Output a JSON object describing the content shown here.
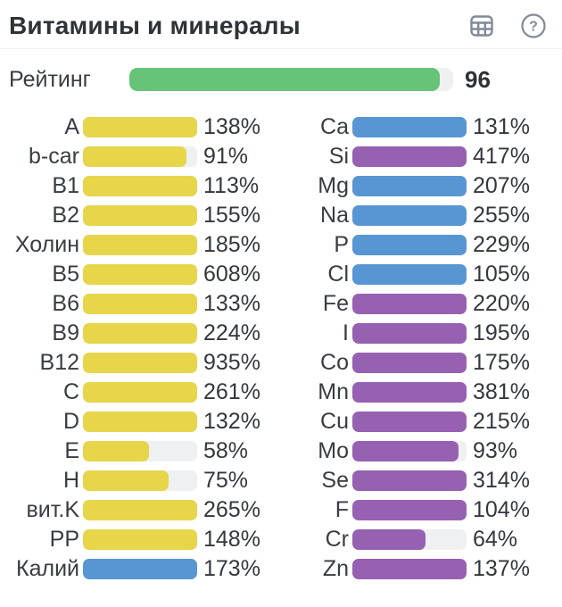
{
  "header": {
    "title": "Витамины и минералы"
  },
  "rating": {
    "label": "Рейтинг",
    "value": "96",
    "percent": 96
  },
  "colors": {
    "yellow": "#e7d54a",
    "blue": "#5796d3",
    "purple": "#9761b2",
    "green": "#66c377",
    "track": "#eef0f2",
    "icon_gray": "#828a95"
  },
  "chart_data": {
    "type": "bar",
    "title": "Витамины и минералы",
    "note_layout": "two columns of horizontal bars, fill capped at 100%",
    "bar_cap_percent": 100,
    "rating": {
      "label": "Рейтинг",
      "value": 96,
      "max": 100,
      "color": "green"
    },
    "columns": [
      {
        "name": "vitamins",
        "rows": [
          {
            "label": "A",
            "percent": 138,
            "display": "138%",
            "color": "yellow"
          },
          {
            "label": "b-car",
            "percent": 91,
            "display": "91%",
            "color": "yellow"
          },
          {
            "label": "B1",
            "percent": 113,
            "display": "113%",
            "color": "yellow"
          },
          {
            "label": "B2",
            "percent": 155,
            "display": "155%",
            "color": "yellow"
          },
          {
            "label": "Холин",
            "percent": 185,
            "display": "185%",
            "color": "yellow"
          },
          {
            "label": "B5",
            "percent": 608,
            "display": "608%",
            "color": "yellow"
          },
          {
            "label": "B6",
            "percent": 133,
            "display": "133%",
            "color": "yellow"
          },
          {
            "label": "B9",
            "percent": 224,
            "display": "224%",
            "color": "yellow"
          },
          {
            "label": "B12",
            "percent": 935,
            "display": "935%",
            "color": "yellow"
          },
          {
            "label": "C",
            "percent": 261,
            "display": "261%",
            "color": "yellow"
          },
          {
            "label": "D",
            "percent": 132,
            "display": "132%",
            "color": "yellow"
          },
          {
            "label": "E",
            "percent": 58,
            "display": "58%",
            "color": "yellow"
          },
          {
            "label": "H",
            "percent": 75,
            "display": "75%",
            "color": "yellow"
          },
          {
            "label": "вит.K",
            "percent": 265,
            "display": "265%",
            "color": "yellow"
          },
          {
            "label": "PP",
            "percent": 148,
            "display": "148%",
            "color": "yellow"
          },
          {
            "label": "Калий",
            "percent": 173,
            "display": "173%",
            "color": "blue"
          }
        ]
      },
      {
        "name": "minerals",
        "rows": [
          {
            "label": "Ca",
            "percent": 131,
            "display": "131%",
            "color": "blue"
          },
          {
            "label": "Si",
            "percent": 417,
            "display": "417%",
            "color": "purple"
          },
          {
            "label": "Mg",
            "percent": 207,
            "display": "207%",
            "color": "blue"
          },
          {
            "label": "Na",
            "percent": 255,
            "display": "255%",
            "color": "blue"
          },
          {
            "label": "P",
            "percent": 229,
            "display": "229%",
            "color": "blue"
          },
          {
            "label": "Cl",
            "percent": 105,
            "display": "105%",
            "color": "blue"
          },
          {
            "label": "Fe",
            "percent": 220,
            "display": "220%",
            "color": "purple"
          },
          {
            "label": "I",
            "percent": 195,
            "display": "195%",
            "color": "purple"
          },
          {
            "label": "Co",
            "percent": 175,
            "display": "175%",
            "color": "purple"
          },
          {
            "label": "Mn",
            "percent": 381,
            "display": "381%",
            "color": "purple"
          },
          {
            "label": "Cu",
            "percent": 215,
            "display": "215%",
            "color": "purple"
          },
          {
            "label": "Mo",
            "percent": 93,
            "display": "93%",
            "color": "purple"
          },
          {
            "label": "Se",
            "percent": 314,
            "display": "314%",
            "color": "purple"
          },
          {
            "label": "F",
            "percent": 104,
            "display": "104%",
            "color": "purple"
          },
          {
            "label": "Cr",
            "percent": 64,
            "display": "64%",
            "color": "purple"
          },
          {
            "label": "Zn",
            "percent": 137,
            "display": "137%",
            "color": "purple"
          }
        ]
      }
    ]
  }
}
